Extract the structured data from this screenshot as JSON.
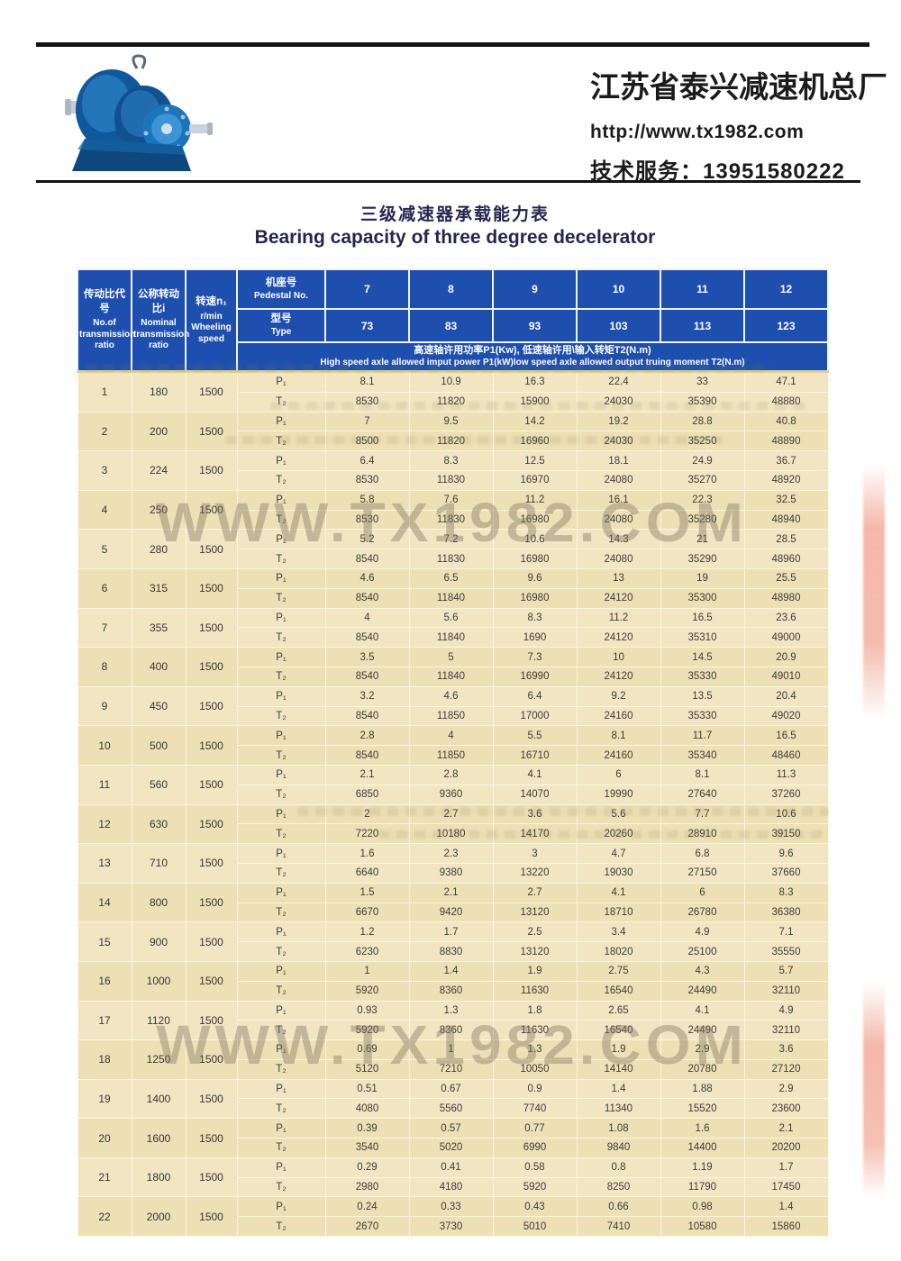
{
  "header": {
    "company_name": "江苏省泰兴减速机总厂",
    "website": "http://www.tx1982.com",
    "service_line": "技术服务：13951580222"
  },
  "title": {
    "cn": "三级减速器承载能力表",
    "en": "Bearing capacity of three degree decelerator"
  },
  "watermark": "WWW.TX1982.COM",
  "table": {
    "columns": {
      "ratio_code": {
        "cn": "传动比代号",
        "en": "No.of transmission ratio"
      },
      "nominal_ratio": {
        "cn": "公称转动比i",
        "en": "Nominal transmission ratio"
      },
      "speed": {
        "cn": "转速n₁",
        "en": "r/min Wheeling speed"
      }
    },
    "pedestal": {
      "cn": "机座号",
      "en": "Pedestal No.",
      "values": [
        "7",
        "8",
        "9",
        "10",
        "11",
        "12"
      ]
    },
    "type": {
      "cn": "型号",
      "en": "Type",
      "values": [
        "73",
        "83",
        "93",
        "103",
        "113",
        "123"
      ]
    },
    "note": {
      "cn": "高速轴许用功率P1(Kw), 低速轴许用\\输入转矩T2(N.m)",
      "en": "High speed axle allowed imput power P1(kW)low speed axle allowed output truing moment T2(N.m)"
    },
    "row_labels": {
      "p": "P₁",
      "t": "T₂"
    },
    "rows": [
      {
        "no": "1",
        "ratio": "180",
        "speed": "1500",
        "p1": [
          "8.1",
          "10.9",
          "16.3",
          "22.4",
          "33",
          "47.1"
        ],
        "t2": [
          "8530",
          "11820",
          "15900",
          "24030",
          "35390",
          "48880"
        ]
      },
      {
        "no": "2",
        "ratio": "200",
        "speed": "1500",
        "p1": [
          "7",
          "9.5",
          "14.2",
          "19.2",
          "28.8",
          "40.8"
        ],
        "t2": [
          "8500",
          "11820",
          "16960",
          "24030",
          "35250",
          "48890"
        ]
      },
      {
        "no": "3",
        "ratio": "224",
        "speed": "1500",
        "p1": [
          "6.4",
          "8.3",
          "12.5",
          "18.1",
          "24.9",
          "36.7"
        ],
        "t2": [
          "8530",
          "11830",
          "16970",
          "24080",
          "35270",
          "48920"
        ]
      },
      {
        "no": "4",
        "ratio": "250",
        "speed": "1500",
        "p1": [
          "5.8",
          "7.6",
          "11.2",
          "16.1",
          "22.3",
          "32.5"
        ],
        "t2": [
          "8530",
          "11830",
          "16980",
          "24080",
          "35280",
          "48940"
        ]
      },
      {
        "no": "5",
        "ratio": "280",
        "speed": "1500",
        "p1": [
          "5.2",
          "7.2",
          "10.6",
          "14.3",
          "21",
          "28.5"
        ],
        "t2": [
          "8540",
          "11830",
          "16980",
          "24080",
          "35290",
          "48960"
        ]
      },
      {
        "no": "6",
        "ratio": "315",
        "speed": "1500",
        "p1": [
          "4.6",
          "6.5",
          "9.6",
          "13",
          "19",
          "25.5"
        ],
        "t2": [
          "8540",
          "11840",
          "16980",
          "24120",
          "35300",
          "48980"
        ]
      },
      {
        "no": "7",
        "ratio": "355",
        "speed": "1500",
        "p1": [
          "4",
          "5.6",
          "8.3",
          "11.2",
          "16.5",
          "23.6"
        ],
        "t2": [
          "8540",
          "11840",
          "1690",
          "24120",
          "35310",
          "49000"
        ]
      },
      {
        "no": "8",
        "ratio": "400",
        "speed": "1500",
        "p1": [
          "3.5",
          "5",
          "7.3",
          "10",
          "14.5",
          "20.9"
        ],
        "t2": [
          "8540",
          "11840",
          "16990",
          "24120",
          "35330",
          "49010"
        ]
      },
      {
        "no": "9",
        "ratio": "450",
        "speed": "1500",
        "p1": [
          "3.2",
          "4.6",
          "6.4",
          "9.2",
          "13.5",
          "20.4"
        ],
        "t2": [
          "8540",
          "11850",
          "17000",
          "24160",
          "35330",
          "49020"
        ]
      },
      {
        "no": "10",
        "ratio": "500",
        "speed": "1500",
        "p1": [
          "2.8",
          "4",
          "5.5",
          "8.1",
          "11.7",
          "16.5"
        ],
        "t2": [
          "8540",
          "11850",
          "16710",
          "24160",
          "35340",
          "48460"
        ]
      },
      {
        "no": "11",
        "ratio": "560",
        "speed": "1500",
        "p1": [
          "2.1",
          "2.8",
          "4.1",
          "6",
          "8.1",
          "11.3"
        ],
        "t2": [
          "6850",
          "9360",
          "14070",
          "19990",
          "27640",
          "37260"
        ]
      },
      {
        "no": "12",
        "ratio": "630",
        "speed": "1500",
        "p1": [
          "2",
          "2.7",
          "3.6",
          "5.6",
          "7.7",
          "10.6"
        ],
        "t2": [
          "7220",
          "10180",
          "14170",
          "20260",
          "28910",
          "39150"
        ]
      },
      {
        "no": "13",
        "ratio": "710",
        "speed": "1500",
        "p1": [
          "1.6",
          "2.3",
          "3",
          "4.7",
          "6.8",
          "9.6"
        ],
        "t2": [
          "6640",
          "9380",
          "13220",
          "19030",
          "27150",
          "37660"
        ]
      },
      {
        "no": "14",
        "ratio": "800",
        "speed": "1500",
        "p1": [
          "1.5",
          "2.1",
          "2.7",
          "4.1",
          "6",
          "8.3"
        ],
        "t2": [
          "6670",
          "9420",
          "13120",
          "18710",
          "26780",
          "36380"
        ]
      },
      {
        "no": "15",
        "ratio": "900",
        "speed": "1500",
        "p1": [
          "1.2",
          "1.7",
          "2.5",
          "3.4",
          "4.9",
          "7.1"
        ],
        "t2": [
          "6230",
          "8830",
          "13120",
          "18020",
          "25100",
          "35550"
        ]
      },
      {
        "no": "16",
        "ratio": "1000",
        "speed": "1500",
        "p1": [
          "1",
          "1.4",
          "1.9",
          "2.75",
          "4.3",
          "5.7"
        ],
        "t2": [
          "5920",
          "8360",
          "11630",
          "16540",
          "24490",
          "32110"
        ]
      },
      {
        "no": "17",
        "ratio": "1120",
        "speed": "1500",
        "p1": [
          "0.93",
          "1.3",
          "1.8",
          "2.65",
          "4.1",
          "4.9"
        ],
        "t2": [
          "5920",
          "8360",
          "11630",
          "16540",
          "24490",
          "32110"
        ]
      },
      {
        "no": "18",
        "ratio": "1250",
        "speed": "1500",
        "p1": [
          "0.69",
          "1",
          "1.3",
          "1.9",
          "2.9",
          "3.6"
        ],
        "t2": [
          "5120",
          "7210",
          "10050",
          "14140",
          "20780",
          "27120"
        ]
      },
      {
        "no": "19",
        "ratio": "1400",
        "speed": "1500",
        "p1": [
          "0.51",
          "0.67",
          "0.9",
          "1.4",
          "1.88",
          "2.9"
        ],
        "t2": [
          "4080",
          "5560",
          "7740",
          "11340",
          "15520",
          "23600"
        ]
      },
      {
        "no": "20",
        "ratio": "1600",
        "speed": "1500",
        "p1": [
          "0.39",
          "0.57",
          "0.77",
          "1.08",
          "1.6",
          "2.1"
        ],
        "t2": [
          "3540",
          "5020",
          "6990",
          "9840",
          "14400",
          "20200"
        ]
      },
      {
        "no": "21",
        "ratio": "1800",
        "speed": "1500",
        "p1": [
          "0.29",
          "0.41",
          "0.58",
          "0.8",
          "1.19",
          "1.7"
        ],
        "t2": [
          "2980",
          "4180",
          "5920",
          "8250",
          "11790",
          "17450"
        ]
      },
      {
        "no": "22",
        "ratio": "2000",
        "speed": "1500",
        "p1": [
          "0.24",
          "0.33",
          "0.43",
          "0.66",
          "0.98",
          "1.4"
        ],
        "t2": [
          "2670",
          "3730",
          "5010",
          "7410",
          "10580",
          "15860"
        ]
      }
    ]
  }
}
